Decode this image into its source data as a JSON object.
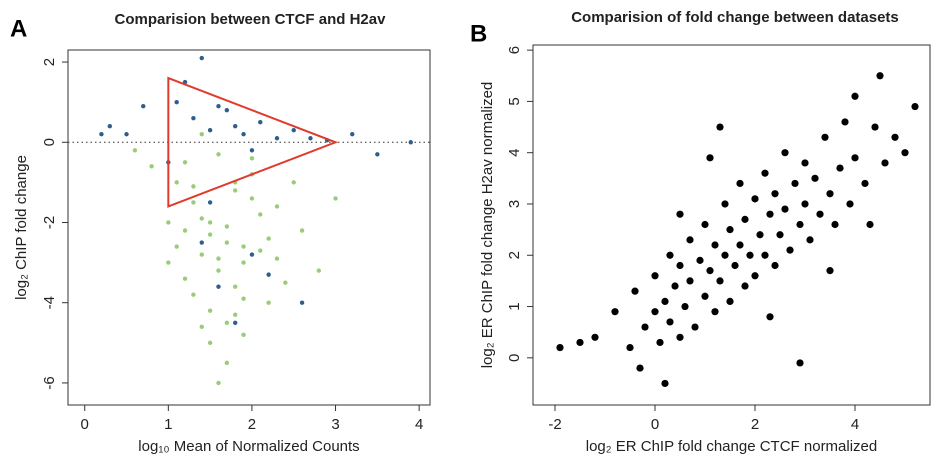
{
  "chart_data": [
    {
      "type": "scatter",
      "panel_label": "A",
      "title": "Comparision between CTCF and H2av",
      "x_label": "log₁₀ Mean of Normalized Counts",
      "y_label": "log₂ ChIP fold change",
      "xlim": [
        -0.2,
        4.13
      ],
      "ylim": [
        -6.55,
        2.3
      ],
      "xticks": [
        0,
        1,
        2,
        3,
        4
      ],
      "yticks": [
        -6,
        -4,
        -2,
        0,
        2
      ],
      "hline": 0,
      "triangle": {
        "x": [
          1,
          3,
          1
        ],
        "y": [
          1.6,
          0,
          -1.6
        ],
        "color": "#e03a2a"
      },
      "series": [
        {
          "color": "#98cd78",
          "x": [
            1.1,
            1.3,
            1.5,
            1.7,
            1.9,
            2.1,
            1.2,
            1.4,
            1.6,
            1.8,
            2.0,
            2.2,
            2.4,
            1.3,
            1.5,
            1.7,
            1.9,
            2.1,
            2.3,
            1.0,
            1.2,
            1.4,
            1.6,
            1.8,
            2.0,
            1.5,
            1.7,
            1.9,
            2.6,
            2.8,
            1.1,
            1.4,
            1.6,
            1.8,
            2.0,
            2.2,
            1.3,
            1.5,
            1.7,
            1.9,
            0.8,
            0.6,
            2.5,
            3.0,
            1.6,
            1.8,
            1.2,
            2.3,
            1.4,
            1.0
          ],
          "y": [
            -1.0,
            -1.5,
            -2.0,
            -2.5,
            -3.0,
            -1.8,
            -2.2,
            -2.8,
            -3.2,
            -1.2,
            -0.8,
            -2.4,
            -3.5,
            -3.8,
            -4.2,
            -4.5,
            -3.9,
            -2.7,
            -1.6,
            -3.0,
            -0.5,
            0.2,
            -0.3,
            -1.0,
            -0.4,
            -5.0,
            -5.5,
            -4.8,
            -2.2,
            -3.2,
            -2.6,
            -1.9,
            -2.9,
            -3.6,
            -1.4,
            -4.0,
            -1.1,
            -2.3,
            -2.1,
            -2.6,
            -0.6,
            -0.2,
            -1.0,
            -1.4,
            -6.0,
            -4.3,
            -3.4,
            -2.9,
            -4.6,
            -2.0
          ]
        },
        {
          "color": "#2e5e8c",
          "x": [
            1.1,
            1.3,
            1.5,
            1.7,
            1.9,
            2.1,
            2.3,
            2.5,
            2.7,
            2.9,
            1.2,
            1.4,
            1.6,
            1.8,
            2.0,
            0.3,
            0.5,
            0.7,
            0.2,
            3.2,
            3.5,
            3.9,
            1.0,
            1.4,
            1.6,
            2.2,
            2.6,
            1.8,
            2.0,
            1.5
          ],
          "y": [
            1.0,
            0.6,
            0.3,
            0.8,
            0.2,
            0.5,
            0.1,
            0.3,
            0.1,
            0.05,
            1.5,
            2.1,
            0.9,
            0.4,
            -0.2,
            0.4,
            0.2,
            0.9,
            0.2,
            0.2,
            -0.3,
            0.0,
            -0.5,
            -2.5,
            -3.6,
            -3.3,
            -4.0,
            -4.5,
            -2.8,
            -1.5
          ]
        }
      ]
    },
    {
      "type": "scatter",
      "panel_label": "B",
      "title": "Comparision of fold change between datasets",
      "x_label": "log₂  ER ChIP fold change CTCF normalized",
      "y_label": "log₂  ER ChIP fold change H2av normalized",
      "xlim": [
        -2.44,
        5.5
      ],
      "ylim": [
        -0.92,
        6.1
      ],
      "xticks": [
        -2,
        0,
        2,
        4
      ],
      "yticks": [
        0,
        1,
        2,
        3,
        4,
        5,
        6
      ],
      "series": [
        {
          "color": "#000000",
          "x": [
            -1.9,
            -1.2,
            -0.8,
            -0.5,
            -0.4,
            -0.2,
            0.0,
            0.0,
            0.1,
            0.2,
            0.3,
            0.3,
            0.4,
            0.5,
            0.5,
            0.6,
            0.7,
            0.7,
            0.8,
            0.9,
            1.0,
            1.0,
            1.1,
            1.2,
            1.2,
            1.3,
            1.4,
            1.4,
            1.5,
            1.5,
            1.6,
            1.7,
            1.7,
            1.8,
            1.8,
            1.9,
            2.0,
            2.0,
            2.1,
            2.2,
            2.2,
            2.3,
            2.4,
            2.4,
            2.5,
            2.6,
            2.6,
            2.7,
            2.8,
            2.9,
            3.0,
            3.0,
            3.1,
            3.2,
            3.3,
            3.4,
            3.5,
            3.6,
            3.7,
            3.8,
            3.9,
            4.0,
            4.2,
            4.4,
            4.6,
            4.8,
            5.0,
            5.2,
            4.5,
            4.0,
            2.9,
            1.1,
            0.5,
            -0.3,
            0.2,
            3.5,
            2.3,
            -1.5,
            4.3,
            1.3
          ],
          "y": [
            0.2,
            0.4,
            0.9,
            0.2,
            1.3,
            0.6,
            0.9,
            1.6,
            0.3,
            1.1,
            2.0,
            0.7,
            1.4,
            0.4,
            1.8,
            1.0,
            2.3,
            1.5,
            0.6,
            1.9,
            1.2,
            2.6,
            1.7,
            0.9,
            2.2,
            1.5,
            3.0,
            2.0,
            1.1,
            2.5,
            1.8,
            3.4,
            2.2,
            1.4,
            2.7,
            2.0,
            3.1,
            1.6,
            2.4,
            3.6,
            2.0,
            2.8,
            1.8,
            3.2,
            2.4,
            4.0,
            2.9,
            2.1,
            3.4,
            2.6,
            3.8,
            3.0,
            2.3,
            3.5,
            2.8,
            4.3,
            3.2,
            2.6,
            3.7,
            4.6,
            3.0,
            3.9,
            3.4,
            4.5,
            3.8,
            4.3,
            4.0,
            4.9,
            5.5,
            5.1,
            -0.1,
            3.9,
            2.8,
            -0.2,
            -0.5,
            1.7,
            0.8,
            0.3,
            2.6,
            4.5
          ]
        }
      ]
    }
  ]
}
